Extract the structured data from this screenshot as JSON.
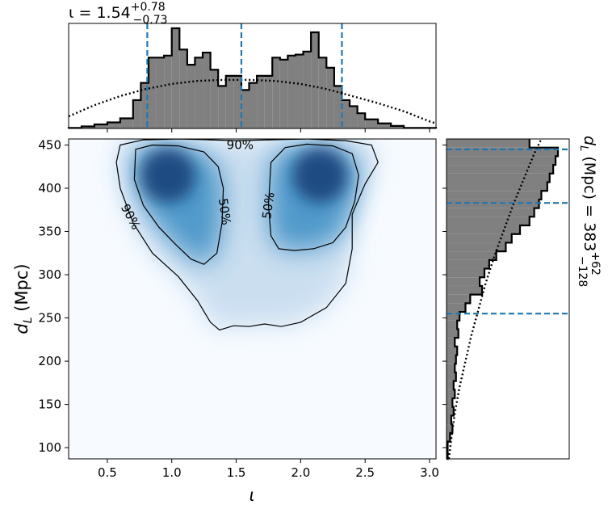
{
  "chart_data": {
    "type": "heatmap",
    "title": "ι = 1.54 +0.78 −0.73",
    "top_annotation": {
      "symbol": "ι",
      "median": "1.54",
      "plus": "+0.78",
      "minus": "−0.73"
    },
    "right_annotation": {
      "label": "d_L (Mpc)",
      "median": "383",
      "plus": "+62",
      "minus": "−128"
    },
    "xlabel": "ι",
    "ylabel": "d_L (Mpc)",
    "xlim": [
      0.2,
      3.05
    ],
    "ylim": [
      87,
      457
    ],
    "xticks": [
      0.5,
      1.0,
      1.5,
      2.0,
      2.5,
      3.0
    ],
    "xtick_labels": [
      "0.5",
      "1.0",
      "1.5",
      "2.0",
      "2.5",
      "3.0"
    ],
    "yticks": [
      100,
      150,
      200,
      250,
      300,
      350,
      400,
      450
    ],
    "ytick_labels": [
      "100",
      "150",
      "200",
      "250",
      "300",
      "350",
      "400",
      "450"
    ],
    "colors": {
      "heat_peak": "#08306b",
      "heat_mid": "#4292c6",
      "heat_low": "#f7fbff",
      "credible_line": "#1f77b4",
      "hist_fill": "#808080"
    },
    "density_peaks": [
      {
        "x": 0.97,
        "y": 415
      },
      {
        "x": 2.15,
        "y": 415
      }
    ],
    "contours": [
      {
        "level": "50%",
        "label": "50%",
        "polygons": [
          [
            [
              0.72,
              445
            ],
            [
              0.85,
              450
            ],
            [
              1.05,
              449
            ],
            [
              1.25,
              442
            ],
            [
              1.36,
              425
            ],
            [
              1.4,
              400
            ],
            [
              1.39,
              360
            ],
            [
              1.35,
              325
            ],
            [
              1.25,
              312
            ],
            [
              1.15,
              318
            ],
            [
              1.03,
              335
            ],
            [
              0.9,
              355
            ],
            [
              0.78,
              380
            ],
            [
              0.71,
              410
            ],
            [
              0.72,
              445
            ]
          ],
          [
            [
              1.77,
              430
            ],
            [
              1.88,
              447
            ],
            [
              2.05,
              451
            ],
            [
              2.25,
              449
            ],
            [
              2.4,
              440
            ],
            [
              2.45,
              415
            ],
            [
              2.42,
              385
            ],
            [
              2.35,
              355
            ],
            [
              2.25,
              337
            ],
            [
              2.1,
              330
            ],
            [
              1.95,
              328
            ],
            [
              1.83,
              330
            ],
            [
              1.77,
              345
            ],
            [
              1.75,
              380
            ],
            [
              1.77,
              430
            ]
          ]
        ]
      },
      {
        "level": "90%",
        "label": "90%",
        "polygons": [
          [
            [
              0.6,
              450
            ],
            [
              0.78,
              456
            ],
            [
              1.05,
              457
            ],
            [
              1.3,
              456
            ],
            [
              1.5,
              455
            ],
            [
              1.75,
              456
            ],
            [
              2.05,
              457
            ],
            [
              2.35,
              455
            ],
            [
              2.55,
              450
            ],
            [
              2.6,
              430
            ],
            [
              2.5,
              405
            ],
            [
              2.4,
              370
            ],
            [
              2.4,
              330
            ],
            [
              2.35,
              290
            ],
            [
              2.2,
              262
            ],
            [
              2.0,
              245
            ],
            [
              1.85,
              240
            ],
            [
              1.72,
              243
            ],
            [
              1.6,
              240
            ],
            [
              1.48,
              241
            ],
            [
              1.37,
              236
            ],
            [
              1.3,
              245
            ],
            [
              1.2,
              270
            ],
            [
              1.05,
              298
            ],
            [
              0.85,
              325
            ],
            [
              0.7,
              360
            ],
            [
              0.6,
              400
            ],
            [
              0.57,
              430
            ],
            [
              0.6,
              450
            ]
          ]
        ]
      }
    ],
    "top_hist": {
      "credible_lines": [
        0.81,
        1.54,
        2.32
      ],
      "bin_edges": [
        0.2,
        0.3,
        0.4,
        0.5,
        0.6,
        0.7,
        0.76,
        0.82,
        0.88,
        0.94,
        1.0,
        1.06,
        1.12,
        1.18,
        1.24,
        1.3,
        1.36,
        1.42,
        1.48,
        1.54,
        1.6,
        1.66,
        1.72,
        1.78,
        1.84,
        1.9,
        1.96,
        2.02,
        2.08,
        2.14,
        2.2,
        2.26,
        2.32,
        2.38,
        2.44,
        2.5,
        2.6,
        2.7,
        2.8,
        3.05
      ],
      "densities": [
        0.005,
        0.02,
        0.04,
        0.06,
        0.1,
        0.28,
        0.45,
        0.7,
        0.7,
        0.72,
        0.99,
        0.78,
        0.63,
        0.7,
        0.75,
        0.58,
        0.42,
        0.52,
        0.52,
        0.38,
        0.45,
        0.52,
        0.52,
        0.7,
        0.68,
        0.72,
        0.73,
        0.76,
        0.95,
        0.7,
        0.6,
        0.42,
        0.28,
        0.22,
        0.15,
        0.09,
        0.05,
        0.025,
        0.005
      ],
      "prior": [
        [
          0.2,
          0.12
        ],
        [
          0.4,
          0.23
        ],
        [
          0.6,
          0.32
        ],
        [
          0.8,
          0.39
        ],
        [
          1.0,
          0.44
        ],
        [
          1.2,
          0.47
        ],
        [
          1.4,
          0.48
        ],
        [
          1.6,
          0.48
        ],
        [
          1.8,
          0.47
        ],
        [
          2.0,
          0.44
        ],
        [
          2.2,
          0.39
        ],
        [
          2.4,
          0.32
        ],
        [
          2.6,
          0.25
        ],
        [
          2.8,
          0.17
        ],
        [
          3.0,
          0.07
        ],
        [
          3.05,
          0.05
        ]
      ]
    },
    "right_hist": {
      "credible_lines": [
        255,
        383,
        445
      ],
      "bin_edges": [
        87,
        97,
        107,
        117,
        127,
        137,
        147,
        157,
        167,
        177,
        187,
        197,
        207,
        217,
        227,
        237,
        247,
        257,
        267,
        277,
        287,
        297,
        307,
        317,
        327,
        337,
        347,
        357,
        367,
        377,
        387,
        397,
        407,
        417,
        427,
        437,
        447,
        457
      ],
      "densities": [
        0.01,
        0.01,
        0.03,
        0.05,
        0.04,
        0.06,
        0.05,
        0.07,
        0.06,
        0.08,
        0.07,
        0.08,
        0.09,
        0.07,
        0.1,
        0.09,
        0.11,
        0.16,
        0.2,
        0.3,
        0.28,
        0.32,
        0.36,
        0.42,
        0.5,
        0.55,
        0.62,
        0.7,
        0.74,
        0.78,
        0.8,
        0.85,
        0.87,
        0.9,
        0.92,
        0.94,
        0.7
      ],
      "prior": [
        [
          87,
          0.02
        ],
        [
          110,
          0.04
        ],
        [
          140,
          0.07
        ],
        [
          170,
          0.11
        ],
        [
          200,
          0.16
        ],
        [
          230,
          0.21
        ],
        [
          260,
          0.27
        ],
        [
          290,
          0.33
        ],
        [
          320,
          0.4
        ],
        [
          350,
          0.48
        ],
        [
          380,
          0.56
        ],
        [
          410,
          0.65
        ],
        [
          440,
          0.74
        ],
        [
          457,
          0.8
        ]
      ]
    }
  }
}
